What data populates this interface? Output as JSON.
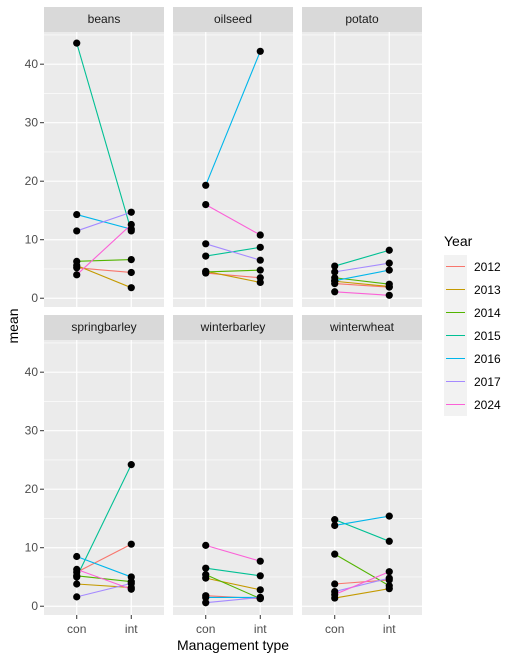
{
  "chart_data": {
    "type": "line",
    "facet_layout": "2x3 grid (facet_wrap by crop)",
    "xlabel": "Management type",
    "ylabel": "mean",
    "x_categories": [
      "con",
      "int"
    ],
    "y_ticks": [
      0,
      10,
      20,
      30,
      40
    ],
    "ylim": [
      -1.5,
      45.5
    ],
    "grid": true,
    "point_color": "#000000",
    "legend": {
      "title": "Year",
      "placement": "right",
      "entries": [
        {
          "label": "2012",
          "color": "#F8766D"
        },
        {
          "label": "2013",
          "color": "#C49A00"
        },
        {
          "label": "2014",
          "color": "#53B400"
        },
        {
          "label": "2015",
          "color": "#00C094"
        },
        {
          "label": "2016",
          "color": "#00B6EB"
        },
        {
          "label": "2017",
          "color": "#A58AFF"
        },
        {
          "label": "2024",
          "color": "#FB61D7"
        }
      ]
    },
    "panels": [
      {
        "name": "beans",
        "series": [
          {
            "year": "2012",
            "values": [
              5.2,
              4.4
            ]
          },
          {
            "year": "2013",
            "values": [
              5.6,
              1.8
            ]
          },
          {
            "year": "2014",
            "values": [
              6.3,
              6.6
            ]
          },
          {
            "year": "2015",
            "values": [
              43.6,
              11.5
            ]
          },
          {
            "year": "2016",
            "values": [
              14.3,
              11.8
            ]
          },
          {
            "year": "2017",
            "values": [
              11.5,
              14.7
            ]
          },
          {
            "year": "2024",
            "values": [
              4.0,
              12.6
            ]
          }
        ]
      },
      {
        "name": "oilseed",
        "series": [
          {
            "year": "2012",
            "values": [
              4.3,
              3.5
            ]
          },
          {
            "year": "2013",
            "values": [
              4.6,
              2.7
            ]
          },
          {
            "year": "2014",
            "values": [
              4.5,
              4.8
            ]
          },
          {
            "year": "2015",
            "values": [
              7.2,
              8.7
            ]
          },
          {
            "year": "2016",
            "values": [
              19.3,
              42.2
            ]
          },
          {
            "year": "2017",
            "values": [
              9.3,
              6.5
            ]
          },
          {
            "year": "2024",
            "values": [
              16.0,
              10.8
            ]
          }
        ]
      },
      {
        "name": "potato",
        "series": [
          {
            "year": "2012",
            "values": [
              2.5,
              1.9
            ]
          },
          {
            "year": "2013",
            "values": [
              2.9,
              2.0
            ]
          },
          {
            "year": "2014",
            "values": [
              3.5,
              2.4
            ]
          },
          {
            "year": "2015",
            "values": [
              5.5,
              8.2
            ]
          },
          {
            "year": "2016",
            "values": [
              3.0,
              4.8
            ]
          },
          {
            "year": "2017",
            "values": [
              4.5,
              6.0
            ]
          },
          {
            "year": "2024",
            "values": [
              1.1,
              0.5
            ]
          }
        ]
      },
      {
        "name": "springbarley",
        "series": [
          {
            "year": "2012",
            "values": [
              5.8,
              10.6
            ]
          },
          {
            "year": "2013",
            "values": [
              3.8,
              3.2
            ]
          },
          {
            "year": "2014",
            "values": [
              5.2,
              4.2
            ]
          },
          {
            "year": "2015",
            "values": [
              5.0,
              24.2
            ]
          },
          {
            "year": "2016",
            "values": [
              8.5,
              5.0
            ]
          },
          {
            "year": "2017",
            "values": [
              1.6,
              3.9
            ]
          },
          {
            "year": "2024",
            "values": [
              6.3,
              2.9
            ]
          }
        ]
      },
      {
        "name": "winterbarley",
        "series": [
          {
            "year": "2012",
            "values": [
              1.8,
              1.3
            ]
          },
          {
            "year": "2013",
            "values": [
              4.8,
              2.8
            ]
          },
          {
            "year": "2014",
            "values": [
              5.4,
              1.3
            ]
          },
          {
            "year": "2015",
            "values": [
              6.5,
              5.2
            ]
          },
          {
            "year": "2016",
            "values": [
              1.5,
              1.5
            ]
          },
          {
            "year": "2017",
            "values": [
              0.6,
              1.5
            ]
          },
          {
            "year": "2024",
            "values": [
              10.4,
              7.7
            ]
          }
        ]
      },
      {
        "name": "winterwheat",
        "series": [
          {
            "year": "2012",
            "values": [
              3.8,
              4.5
            ]
          },
          {
            "year": "2013",
            "values": [
              1.4,
              3.0
            ]
          },
          {
            "year": "2014",
            "values": [
              8.9,
              3.5
            ]
          },
          {
            "year": "2015",
            "values": [
              14.8,
              11.1
            ]
          },
          {
            "year": "2016",
            "values": [
              13.8,
              15.4
            ]
          },
          {
            "year": "2017",
            "values": [
              2.5,
              4.8
            ]
          },
          {
            "year": "2024",
            "values": [
              2.0,
              5.9
            ]
          }
        ]
      }
    ]
  }
}
